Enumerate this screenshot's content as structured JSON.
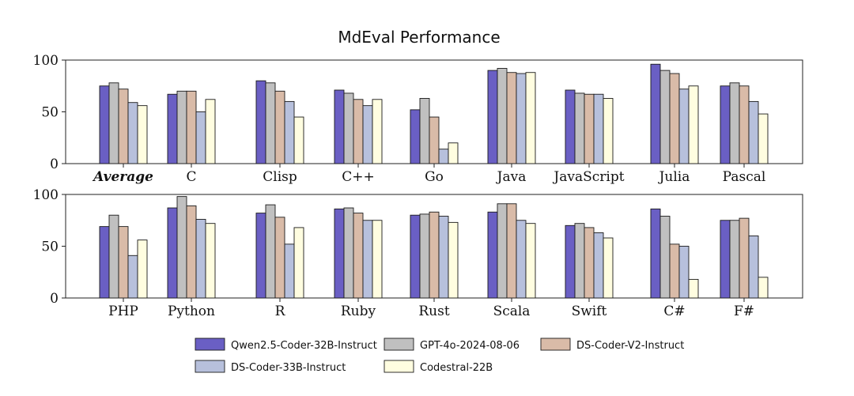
{
  "chart_data": {
    "type": "bar",
    "title": "MdEval Performance",
    "xlabel": "",
    "ylabel": "",
    "ylim": [
      0,
      100
    ],
    "yticks": [
      0,
      50,
      100
    ],
    "grid": false,
    "legend_position": "bottom",
    "series": [
      {
        "name": "Qwen2.5-Coder-32B-Instruct",
        "color": "#6a5fc4"
      },
      {
        "name": "GPT-4o-2024-08-06",
        "color": "#c0c0c0"
      },
      {
        "name": "DS-Coder-V2-Instruct",
        "color": "#d9bba8"
      },
      {
        "name": "DS-Coder-33B-Instruct",
        "color": "#b7c0dc"
      },
      {
        "name": "Codestral-22B",
        "color": "#fffde0"
      }
    ],
    "panels": [
      {
        "categories": [
          "Average",
          "C",
          "Clisp",
          "C++",
          "Go",
          "Java",
          "JavaScript",
          "Julia",
          "Pascal"
        ],
        "values": [
          [
            75,
            67,
            80,
            71,
            52,
            90,
            71,
            96,
            75
          ],
          [
            78,
            70,
            78,
            68,
            63,
            92,
            68,
            90,
            78
          ],
          [
            72,
            70,
            70,
            62,
            45,
            88,
            67,
            87,
            75
          ],
          [
            59,
            50,
            60,
            56,
            14,
            87,
            67,
            72,
            60
          ],
          [
            56,
            62,
            45,
            62,
            20,
            88,
            63,
            75,
            48
          ]
        ]
      },
      {
        "categories": [
          "PHP",
          "Python",
          "R",
          "Ruby",
          "Rust",
          "Scala",
          "Swift",
          "C#",
          "F#"
        ],
        "values": [
          [
            69,
            87,
            82,
            86,
            80,
            83,
            70,
            86,
            75
          ],
          [
            80,
            98,
            90,
            87,
            81,
            91,
            72,
            79,
            75
          ],
          [
            69,
            89,
            78,
            82,
            83,
            91,
            68,
            52,
            77
          ],
          [
            41,
            76,
            52,
            75,
            79,
            75,
            63,
            50,
            60
          ],
          [
            56,
            72,
            68,
            75,
            73,
            72,
            58,
            18,
            20
          ]
        ]
      }
    ]
  }
}
